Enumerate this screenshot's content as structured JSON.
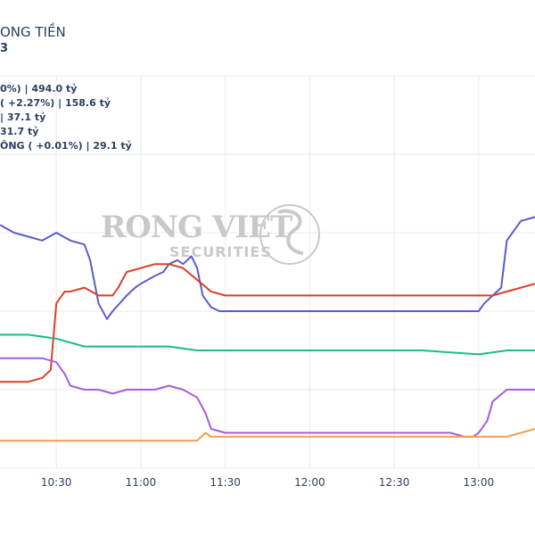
{
  "chart_data": {
    "type": "line",
    "title": "ONG TIỀN",
    "subtitle": "3",
    "legend": [
      "0%) | 494.0 tỷ",
      "( +2.27%) | 158.6 tỷ",
      "| 37.1 tỷ",
      "31.7 tỷ",
      "ÔNG ( +0.01%) | 29.1 tỷ"
    ],
    "x_ticks": [
      "10:30",
      "11:00",
      "11:30",
      "12:00",
      "12:30",
      "13:00"
    ],
    "x_tick_minutes": [
      630,
      660,
      690,
      720,
      750,
      780
    ],
    "xlim": [
      610,
      800
    ],
    "ylim": [
      0,
      100
    ],
    "grid": true,
    "series": [
      {
        "color": "#5c5cc8",
        "x": [
          610,
          615,
          620,
          625,
          630,
          635,
          640,
          642,
          645,
          648,
          650,
          655,
          658,
          660,
          665,
          668,
          670,
          673,
          675,
          678,
          680,
          682,
          685,
          688,
          690,
          700,
          710,
          720,
          730,
          740,
          750,
          760,
          770,
          778,
          780,
          782,
          785,
          788,
          790,
          795,
          800
        ],
        "y": [
          62,
          60,
          59,
          58,
          60,
          58,
          57,
          53,
          42,
          38,
          40,
          44,
          46,
          47,
          49,
          50,
          52,
          53,
          52,
          54,
          51,
          44,
          41,
          40,
          40,
          40,
          40,
          40,
          40,
          40,
          40,
          40,
          40,
          40,
          40,
          42,
          44,
          46,
          58,
          63,
          64
        ]
      },
      {
        "color": "#d9412b",
        "x": [
          610,
          620,
          625,
          628,
          630,
          633,
          635,
          640,
          645,
          650,
          652,
          655,
          660,
          665,
          670,
          675,
          680,
          685,
          690,
          700,
          720,
          740,
          760,
          780,
          785,
          790,
          795,
          800
        ],
        "y": [
          22,
          22,
          23,
          25,
          42,
          45,
          45,
          46,
          44,
          44,
          46,
          50,
          51,
          52,
          52,
          51,
          48,
          45,
          44,
          44,
          44,
          44,
          44,
          44,
          44,
          45,
          46,
          47
        ]
      },
      {
        "color": "#1fb98a",
        "x": [
          610,
          620,
          630,
          640,
          650,
          660,
          670,
          680,
          690,
          700,
          720,
          740,
          760,
          780,
          790,
          800
        ],
        "y": [
          34,
          34,
          33,
          31,
          31,
          31,
          31,
          30,
          30,
          30,
          30,
          30,
          30,
          29,
          30,
          30
        ]
      },
      {
        "color": "#a65ddc",
        "x": [
          610,
          620,
          625,
          630,
          633,
          635,
          640,
          645,
          650,
          655,
          660,
          665,
          670,
          675,
          680,
          683,
          685,
          690,
          700,
          720,
          740,
          760,
          770,
          775,
          778,
          780,
          783,
          785,
          790,
          800
        ],
        "y": [
          28,
          28,
          28,
          27,
          24,
          21,
          20,
          20,
          19,
          20,
          20,
          20,
          21,
          20,
          18,
          14,
          10,
          9,
          9,
          9,
          9,
          9,
          9,
          8,
          8,
          9,
          12,
          17,
          20,
          20
        ]
      },
      {
        "color": "#f39c4d",
        "x": [
          610,
          620,
          630,
          640,
          650,
          660,
          665,
          670,
          675,
          680,
          683,
          685,
          690,
          700,
          720,
          740,
          760,
          780,
          790,
          800
        ],
        "y": [
          7,
          7,
          7,
          7,
          7,
          7,
          7,
          7,
          7,
          7,
          9,
          8,
          8,
          8,
          8,
          8,
          8,
          8,
          8,
          10
        ]
      }
    ]
  }
}
